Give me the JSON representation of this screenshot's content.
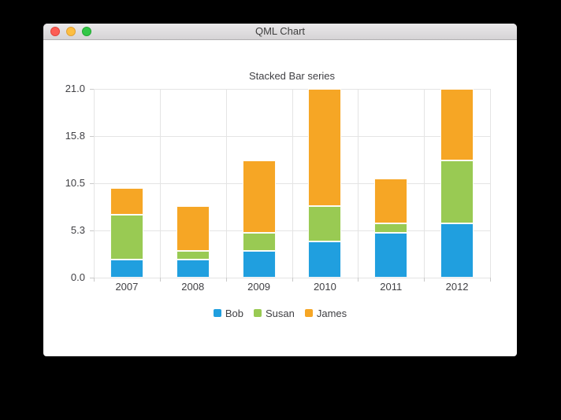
{
  "window": {
    "title": "QML Chart",
    "controls": [
      {
        "name": "close",
        "color": "#fc5d55",
        "border": "#e2443c"
      },
      {
        "name": "minimize",
        "color": "#fdbe41",
        "border": "#e0a135"
      },
      {
        "name": "zoom",
        "color": "#33c748",
        "border": "#23a832"
      }
    ]
  },
  "chart_data": {
    "type": "bar",
    "stacked": true,
    "title": "Stacked Bar series",
    "categories": [
      "2007",
      "2008",
      "2009",
      "2010",
      "2011",
      "2012"
    ],
    "series": [
      {
        "name": "Bob",
        "color": "#209fdf",
        "values": [
          2,
          2,
          3,
          4,
          5,
          6
        ]
      },
      {
        "name": "Susan",
        "color": "#99ca53",
        "values": [
          5,
          1,
          2,
          4,
          1,
          7
        ]
      },
      {
        "name": "James",
        "color": "#f6a625",
        "values": [
          3,
          5,
          8,
          13,
          5,
          8
        ]
      }
    ],
    "category_totals": [
      10,
      8,
      13,
      21,
      11,
      21
    ],
    "xlabel": "",
    "ylabel": "",
    "ylim": [
      0,
      21
    ],
    "y_ticks": [
      {
        "value": 0,
        "label": "0.0"
      },
      {
        "value": 5.25,
        "label": "5.3"
      },
      {
        "value": 10.5,
        "label": "10.5"
      },
      {
        "value": 15.75,
        "label": "15.8"
      },
      {
        "value": 21,
        "label": "21.0"
      }
    ],
    "grid": true,
    "legend_position": "bottom"
  },
  "colors": {
    "grid": "#e4e4e4",
    "axis_tick": "#c9c9c9",
    "label_text": "#404044",
    "chart_background": "#ffffff"
  }
}
